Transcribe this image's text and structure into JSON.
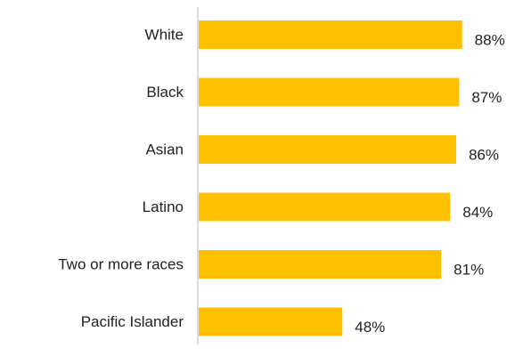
{
  "colors": {
    "bar": "#ffc000",
    "axis": "#d0d0d0",
    "text": "#222222"
  },
  "chart_data": {
    "type": "bar",
    "orientation": "horizontal",
    "title": "",
    "xlabel": "",
    "ylabel": "",
    "xlim": [
      0,
      100
    ],
    "grid": false,
    "legend": "none",
    "categories": [
      "White",
      "Black",
      "Asian",
      "Latino",
      "Two or more races",
      "Pacific Islander"
    ],
    "values": [
      88,
      87,
      86,
      84,
      81,
      48
    ],
    "value_labels": [
      "88%",
      "87%",
      "86%",
      "84%",
      "81%",
      "48%"
    ]
  }
}
